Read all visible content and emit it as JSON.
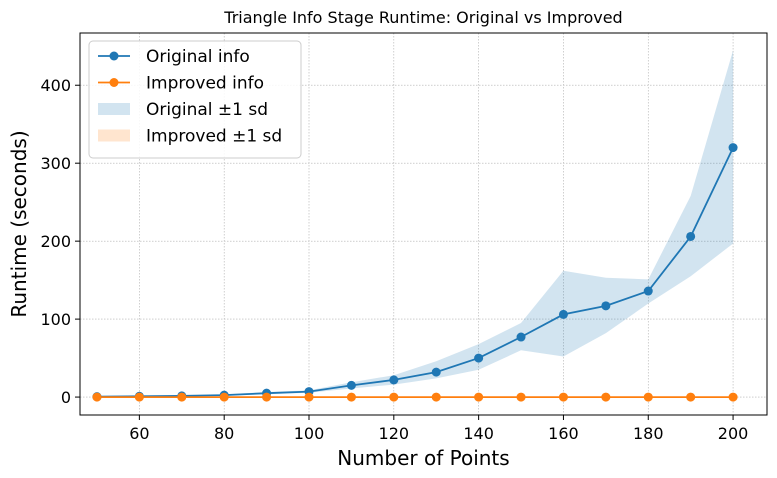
{
  "chart_data": {
    "type": "line",
    "title": "Triangle Info Stage Runtime: Original vs Improved",
    "xlabel": "Number of Points",
    "ylabel": "Runtime (seconds)",
    "x": [
      50,
      60,
      70,
      80,
      90,
      100,
      110,
      120,
      130,
      140,
      150,
      160,
      170,
      180,
      190,
      200
    ],
    "xlim": [
      46,
      208
    ],
    "ylim": [
      -23,
      467
    ],
    "xticks": [
      "60",
      "80",
      "100",
      "120",
      "140",
      "160",
      "180",
      "200"
    ],
    "yticks": [
      "0",
      "100",
      "200",
      "300",
      "400"
    ],
    "xtick_values": [
      60,
      80,
      100,
      120,
      140,
      160,
      180,
      200
    ],
    "ytick_values": [
      0,
      100,
      200,
      300,
      400
    ],
    "grid": true,
    "legend_position": "top-left",
    "series": [
      {
        "name": "Original info",
        "color": "#1f77b4",
        "marker": "circle",
        "values": [
          0.5,
          1,
          1.5,
          2.5,
          5,
          7,
          15,
          22,
          32,
          50,
          77,
          106,
          117,
          136,
          206,
          320
        ],
        "band_name": "Original ±1 sd",
        "band_color": "#1f77b4",
        "band_lower": [
          0.3,
          0.6,
          1.0,
          1.8,
          3.5,
          5.5,
          11,
          16,
          24,
          35,
          60,
          52,
          82,
          120,
          155,
          197
        ],
        "band_upper": [
          0.8,
          1.4,
          2.0,
          3.3,
          6.5,
          8.5,
          19,
          28,
          46,
          68,
          95,
          162,
          153,
          151,
          258,
          445
        ]
      },
      {
        "name": "Improved info",
        "color": "#ff7f0e",
        "marker": "circle",
        "values": [
          0,
          0,
          0,
          0,
          0,
          0,
          0,
          0,
          0,
          0,
          0,
          0,
          0,
          0,
          0,
          0
        ],
        "band_name": "Improved ±1 sd",
        "band_color": "#ff7f0e",
        "band_lower": [
          0,
          0,
          0,
          0,
          0,
          0,
          0,
          0,
          0,
          0,
          0,
          0,
          0,
          0,
          0,
          0
        ],
        "band_upper": [
          0,
          0,
          0,
          0,
          0,
          0,
          0,
          0,
          0,
          0,
          0,
          0,
          0,
          0,
          0,
          0
        ]
      }
    ]
  }
}
